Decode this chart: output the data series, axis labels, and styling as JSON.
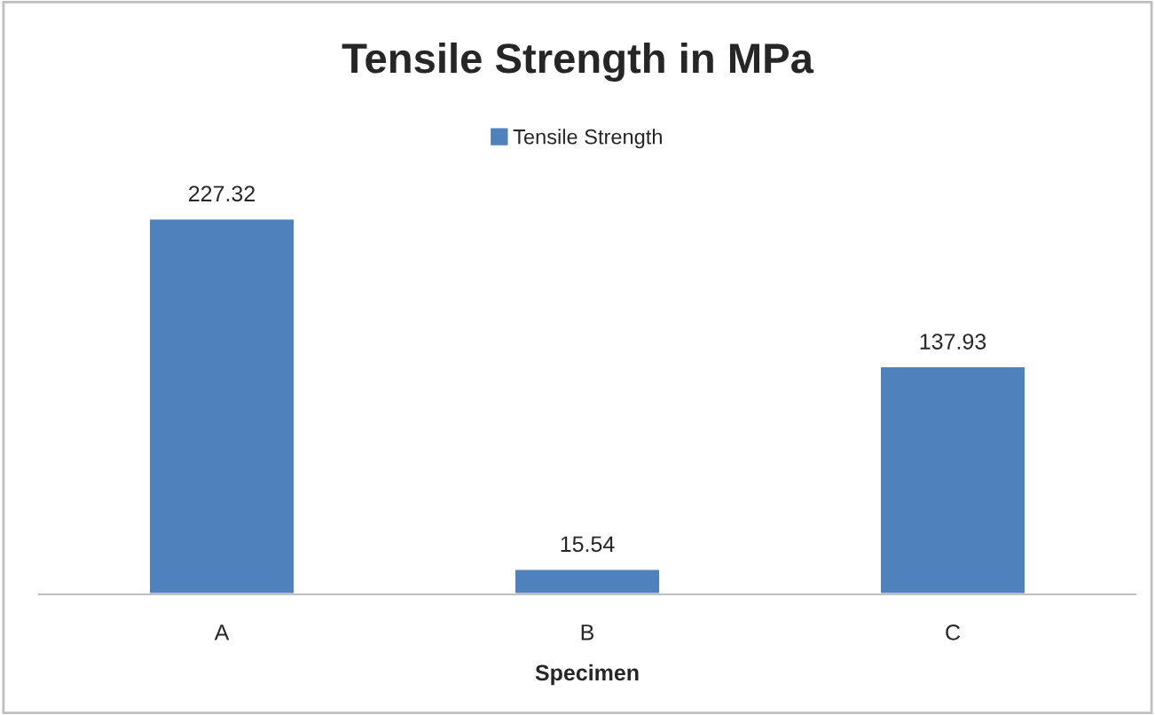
{
  "chart_data": {
    "type": "bar",
    "title": "Tensile Strength in MPa",
    "xlabel": "Specimen",
    "categories": [
      "A",
      "B",
      "C"
    ],
    "series": [
      {
        "name": "Tensile Strength",
        "color": "#4f81bd",
        "values": [
          227.32,
          15.54,
          137.93
        ]
      }
    ],
    "data_labels": true,
    "legend": "top",
    "grid": false
  }
}
